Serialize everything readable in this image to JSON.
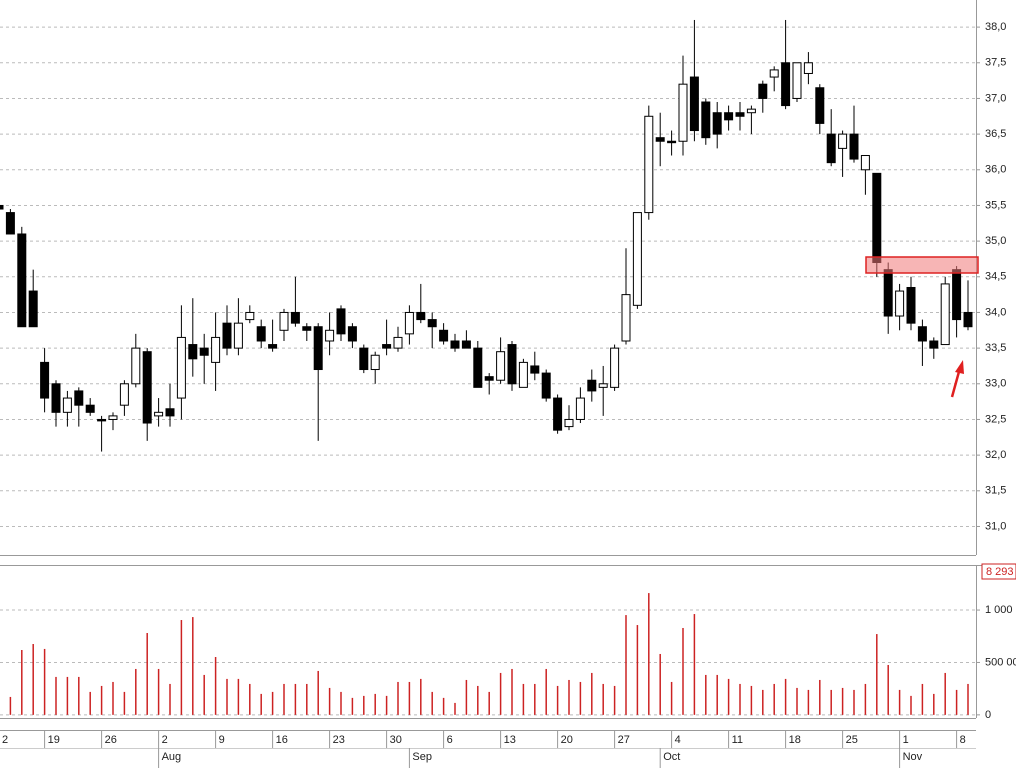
{
  "chart_data": [
    {
      "type": "candlestick",
      "categories": [
        "2",
        null,
        null,
        null,
        "19",
        null,
        null,
        null,
        null,
        "26",
        null,
        null,
        null,
        null,
        "2",
        null,
        null,
        null,
        null,
        "9",
        null,
        null,
        null,
        null,
        "16",
        null,
        null,
        null,
        null,
        "23",
        null,
        null,
        null,
        null,
        "30",
        null,
        null,
        null,
        null,
        "6",
        null,
        null,
        null,
        null,
        "13",
        null,
        null,
        null,
        null,
        "20",
        null,
        null,
        null,
        null,
        "27",
        null,
        null,
        null,
        null,
        "4",
        null,
        null,
        null,
        null,
        "11",
        null,
        null,
        null,
        null,
        "18",
        null,
        null,
        null,
        null,
        "25",
        null,
        null,
        null,
        null,
        "1",
        null,
        null,
        null,
        null,
        "8",
        null
      ],
      "months": [
        null,
        null,
        null,
        null,
        null,
        null,
        null,
        null,
        null,
        null,
        null,
        null,
        null,
        null,
        "Aug",
        null,
        null,
        null,
        null,
        null,
        null,
        null,
        null,
        null,
        null,
        null,
        null,
        null,
        null,
        null,
        null,
        null,
        null,
        null,
        null,
        null,
        "Sep",
        null,
        null,
        null,
        null,
        null,
        null,
        null,
        null,
        null,
        null,
        null,
        null,
        null,
        null,
        null,
        null,
        null,
        null,
        null,
        null,
        null,
        "Oct",
        null,
        null,
        null,
        null,
        null,
        null,
        null,
        null,
        null,
        null,
        null,
        null,
        null,
        null,
        null,
        null,
        null,
        null,
        null,
        null,
        "Nov",
        null,
        null,
        null,
        null,
        null,
        null
      ],
      "open": [
        35.5,
        35.4,
        35.1,
        34.3,
        33.3,
        33.0,
        32.6,
        32.9,
        32.7,
        32.5,
        32.5,
        32.7,
        33.0,
        33.45,
        32.55,
        32.65,
        32.8,
        33.55,
        33.5,
        33.3,
        33.85,
        33.5,
        33.9,
        33.8,
        33.55,
        33.75,
        34.0,
        33.8,
        33.8,
        33.6,
        34.05,
        33.8,
        33.5,
        33.2,
        33.55,
        33.5,
        33.7,
        34.0,
        33.9,
        33.75,
        33.6,
        33.6,
        33.5,
        33.1,
        33.05,
        33.55,
        32.95,
        33.25,
        33.15,
        32.8,
        32.4,
        32.5,
        33.05,
        32.95,
        32.95,
        33.6,
        34.1,
        35.4,
        36.45,
        36.4,
        36.4,
        37.3,
        36.95,
        36.8,
        36.8,
        36.8,
        36.8,
        37.2,
        37.3,
        37.5,
        37.0,
        37.35,
        37.15,
        36.5,
        36.3,
        36.5,
        36.0,
        35.95,
        34.6,
        33.95,
        34.35,
        33.8,
        33.6,
        33.55,
        34.6,
        34.0
      ],
      "high": [
        35.55,
        35.45,
        35.2,
        34.6,
        33.5,
        33.05,
        32.9,
        32.95,
        32.8,
        32.55,
        32.6,
        33.05,
        33.7,
        33.5,
        32.8,
        33.0,
        34.1,
        34.2,
        33.7,
        34.0,
        34.1,
        34.2,
        34.1,
        33.9,
        33.9,
        34.05,
        34.5,
        33.85,
        33.85,
        34.0,
        34.1,
        33.85,
        33.55,
        33.45,
        33.9,
        33.8,
        34.1,
        34.4,
        34.0,
        33.85,
        33.7,
        33.75,
        33.6,
        33.15,
        33.65,
        33.6,
        33.35,
        33.45,
        33.2,
        32.85,
        32.7,
        32.95,
        33.2,
        33.25,
        33.55,
        34.9,
        35.4,
        36.9,
        36.8,
        36.55,
        37.6,
        38.1,
        37.0,
        36.95,
        36.9,
        36.95,
        36.9,
        37.25,
        37.45,
        38.1,
        37.5,
        37.65,
        37.2,
        36.85,
        36.55,
        36.9,
        36.2,
        35.95,
        34.7,
        34.4,
        34.5,
        33.9,
        33.65,
        34.5,
        34.65,
        34.45
      ],
      "low": [
        35.4,
        35.1,
        33.8,
        33.8,
        32.6,
        32.4,
        32.4,
        32.4,
        32.55,
        32.05,
        32.35,
        32.55,
        32.95,
        32.2,
        32.4,
        32.4,
        32.5,
        33.1,
        33.0,
        32.9,
        33.4,
        33.4,
        33.85,
        33.5,
        33.45,
        33.6,
        33.8,
        33.6,
        32.2,
        33.4,
        33.6,
        33.5,
        33.15,
        33.0,
        33.4,
        33.45,
        33.55,
        33.85,
        33.5,
        33.55,
        33.45,
        33.5,
        32.95,
        32.85,
        33.0,
        32.9,
        32.95,
        33.05,
        32.75,
        32.3,
        32.35,
        32.45,
        32.75,
        32.55,
        32.9,
        33.55,
        34.05,
        35.3,
        36.05,
        36.2,
        36.2,
        36.4,
        36.35,
        36.3,
        36.55,
        36.55,
        36.5,
        36.8,
        37.1,
        36.85,
        36.95,
        37.2,
        36.5,
        36.05,
        35.9,
        36.1,
        35.65,
        34.5,
        33.7,
        33.75,
        33.75,
        33.25,
        33.35,
        33.55,
        33.65,
        33.75
      ],
      "close": [
        35.45,
        35.1,
        33.8,
        33.8,
        32.8,
        32.6,
        32.8,
        32.7,
        32.6,
        32.48,
        32.55,
        33.0,
        33.5,
        32.45,
        32.6,
        32.55,
        33.65,
        33.35,
        33.4,
        33.65,
        33.5,
        33.85,
        34.0,
        33.6,
        33.5,
        34.0,
        33.85,
        33.75,
        33.2,
        33.75,
        33.7,
        33.6,
        33.2,
        33.4,
        33.5,
        33.65,
        34.0,
        33.9,
        33.8,
        33.6,
        33.5,
        33.5,
        32.95,
        33.05,
        33.45,
        33.0,
        33.3,
        33.15,
        32.8,
        32.35,
        32.5,
        32.8,
        32.9,
        33.0,
        33.5,
        34.25,
        35.4,
        36.75,
        36.4,
        36.38,
        37.2,
        36.55,
        36.45,
        36.5,
        36.7,
        36.75,
        36.85,
        37.0,
        37.4,
        36.9,
        37.5,
        37.5,
        36.65,
        36.1,
        36.5,
        36.15,
        36.2,
        34.7,
        33.95,
        34.3,
        33.85,
        33.6,
        33.5,
        34.4,
        33.9,
        33.8
      ],
      "ylim": [
        30.6,
        38.38
      ],
      "yticks": [
        {
          "value": 31,
          "label": "31,0"
        },
        {
          "value": 31.5,
          "label": "31,5"
        },
        {
          "value": 32,
          "label": "32,0"
        },
        {
          "value": 32.5,
          "label": "32,5"
        },
        {
          "value": 33,
          "label": "33,0"
        },
        {
          "value": 33.5,
          "label": "33,5"
        },
        {
          "value": 34,
          "label": "34,0"
        },
        {
          "value": 34.5,
          "label": "34,5"
        },
        {
          "value": 35,
          "label": "35,0"
        },
        {
          "value": 35.5,
          "label": "35,5"
        },
        {
          "value": 36,
          "label": "36,0"
        },
        {
          "value": 36.5,
          "label": "36,5"
        },
        {
          "value": 37,
          "label": "37,0"
        },
        {
          "value": 37.5,
          "label": "37,5"
        },
        {
          "value": 38,
          "label": "38,0"
        }
      ],
      "grid": true
    },
    {
      "type": "bar",
      "values": [
        null,
        171000,
        619000,
        676000,
        629000,
        362000,
        362000,
        362000,
        219000,
        276000,
        314000,
        219000,
        438000,
        781000,
        438000,
        295000,
        905000,
        933000,
        381000,
        552000,
        343000,
        343000,
        295000,
        200000,
        219000,
        295000,
        295000,
        295000,
        419000,
        257000,
        219000,
        162000,
        181000,
        200000,
        181000,
        314000,
        314000,
        343000,
        219000,
        162000,
        114000,
        333000,
        276000,
        219000,
        400000,
        438000,
        295000,
        295000,
        438000,
        276000,
        333000,
        314000,
        400000,
        295000,
        276000,
        952000,
        857000,
        1162000,
        581000,
        314000,
        829000,
        962000,
        381000,
        381000,
        343000,
        295000,
        276000,
        238000,
        295000,
        343000,
        257000,
        238000,
        333000,
        238000,
        257000,
        238000,
        295000,
        771000,
        476000,
        238000,
        181000,
        295000,
        200000,
        400000,
        238000,
        295000
      ],
      "color": "#cc2222",
      "annotation": "8 293",
      "ylim": [
        -30000,
        1430000
      ],
      "yticks": [
        0,
        {
          "value": 500000,
          "label": "500 00"
        },
        {
          "value": 1000000,
          "label": "1 000"
        }
      ],
      "grid": true
    }
  ]
}
